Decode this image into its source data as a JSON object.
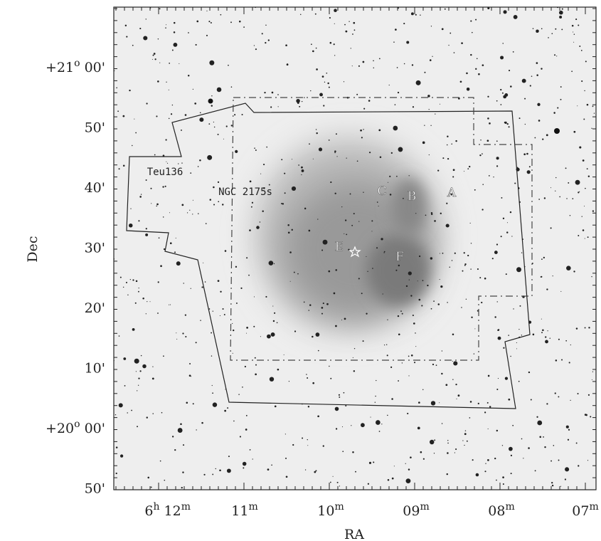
{
  "axes": {
    "x_label": "RA",
    "y_label": "Dec",
    "ra_ticks": [
      [
        {
          "t": "6",
          "s": "h"
        },
        {
          "t": "12",
          "s": "m"
        }
      ],
      [
        {
          "t": "11",
          "s": "m"
        }
      ],
      [
        {
          "t": "10",
          "s": "m"
        }
      ],
      [
        {
          "t": "09",
          "s": "m"
        }
      ],
      [
        {
          "t": "08",
          "s": "m"
        }
      ],
      [
        {
          "t": "07",
          "s": "m"
        }
      ]
    ],
    "dec_ticks": [
      [
        {
          "t": "+21",
          "s": "o"
        },
        {
          "t": "00'"
        }
      ],
      [
        {
          "t": "50'"
        }
      ],
      [
        {
          "t": "40'"
        }
      ],
      [
        {
          "t": "30'"
        }
      ],
      [
        {
          "t": "20'"
        }
      ],
      [
        {
          "t": "10'"
        }
      ],
      [
        {
          "t": "+20",
          "s": "o"
        },
        {
          "t": "00'"
        }
      ],
      [
        {
          "t": "50'"
        }
      ]
    ]
  },
  "labels": {
    "teu136": "Teu136",
    "ngc": "NGC 2175s",
    "a": "A",
    "b": "B",
    "c": "C",
    "e": "E",
    "f": "F"
  }
}
